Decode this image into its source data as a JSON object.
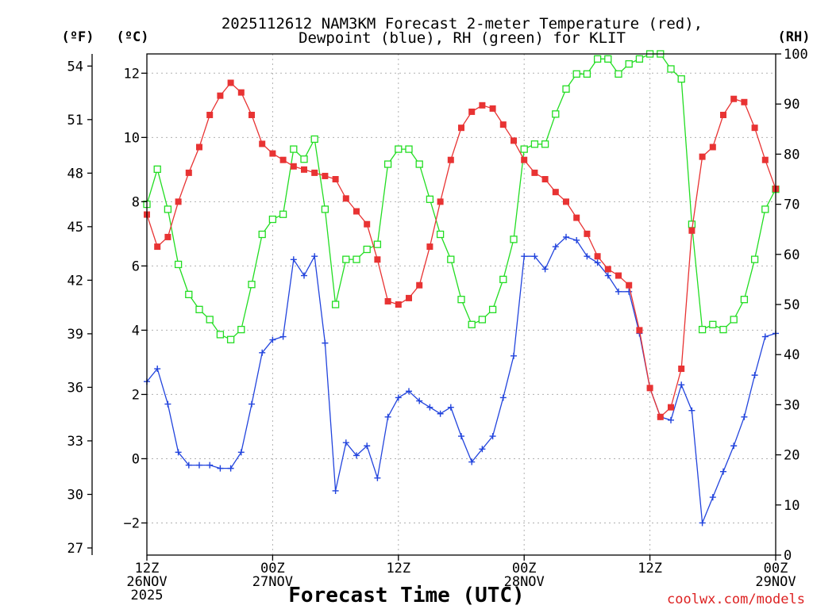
{
  "chart_data": {
    "type": "line",
    "title_line1": "2025112612 NAM3KM Forecast 2-meter Temperature (red),",
    "title_line2": "Dewpoint (blue), RH (green) for KLIT",
    "xlabel": "Forecast Time (UTC)",
    "credit": "coolwx.com/models",
    "unit_f": "(ºF)",
    "unit_c": "(ºC)",
    "unit_rh": "(RH)",
    "x_range_hours": [
      0,
      60
    ],
    "ylim_c": [
      -3,
      12.6
    ],
    "ylim_rh": [
      0,
      100
    ],
    "x_ticks": [
      {
        "hour": 0,
        "lines": [
          "12Z",
          "26NOV",
          "2025"
        ]
      },
      {
        "hour": 12,
        "lines": [
          "00Z",
          "27NOV"
        ]
      },
      {
        "hour": 24,
        "lines": [
          "12Z"
        ]
      },
      {
        "hour": 36,
        "lines": [
          "00Z",
          "28NOV"
        ]
      },
      {
        "hour": 48,
        "lines": [
          "12Z"
        ]
      },
      {
        "hour": 60,
        "lines": [
          "00Z",
          "29NOV"
        ]
      }
    ],
    "yticks_f": [
      27,
      30,
      33,
      36,
      39,
      42,
      45,
      48,
      51,
      54
    ],
    "yticks_c": [
      -2,
      0,
      2,
      4,
      6,
      8,
      10,
      12
    ],
    "yticks_rh": [
      0,
      10,
      20,
      30,
      40,
      50,
      60,
      70,
      80,
      90,
      100
    ],
    "series": [
      {
        "name": "Temperature (red)",
        "axis": "c",
        "color": "#e83333",
        "marker": "filled-square",
        "values": [
          7.6,
          6.6,
          6.9,
          8.0,
          8.9,
          9.7,
          10.7,
          11.3,
          11.7,
          11.4,
          10.7,
          9.8,
          9.5,
          9.3,
          9.1,
          9.0,
          8.9,
          8.8,
          8.7,
          8.1,
          7.7,
          7.3,
          6.2,
          4.9,
          4.8,
          5.0,
          5.4,
          6.6,
          8.0,
          9.3,
          10.3,
          10.8,
          11.0,
          10.9,
          10.4,
          9.9,
          9.3,
          8.9,
          8.7,
          8.3,
          8.0,
          7.5,
          7.0,
          6.3,
          5.9,
          5.7,
          5.4,
          4.0,
          2.2,
          1.3,
          1.6,
          2.8,
          7.1,
          9.4,
          9.7,
          10.7,
          11.2,
          11.1,
          10.3,
          9.3,
          8.4
        ]
      },
      {
        "name": "Dewpoint (blue)",
        "axis": "c",
        "color": "#2244dd",
        "marker": "plus",
        "values": [
          2.4,
          2.8,
          1.7,
          0.2,
          -0.2,
          -0.2,
          -0.2,
          -0.3,
          -0.3,
          0.2,
          1.7,
          3.3,
          3.7,
          3.8,
          6.2,
          5.7,
          6.3,
          3.6,
          -1.0,
          0.5,
          0.1,
          0.4,
          -0.6,
          1.3,
          1.9,
          2.1,
          1.8,
          1.6,
          1.4,
          1.6,
          0.7,
          -0.1,
          0.3,
          0.7,
          1.9,
          3.2,
          6.3,
          6.3,
          5.9,
          6.6,
          6.9,
          6.8,
          6.3,
          6.1,
          5.7,
          5.2,
          5.2,
          3.9,
          2.2,
          1.3,
          1.2,
          2.3,
          1.5,
          -2.0,
          -1.2,
          -0.4,
          0.4,
          1.3,
          2.6,
          3.8,
          3.9
        ]
      },
      {
        "name": "RH (green)",
        "axis": "rh",
        "color": "#22dd22",
        "marker": "open-square",
        "values": [
          70,
          77,
          69,
          58,
          52,
          49,
          47,
          44,
          43,
          45,
          54,
          64,
          67,
          68,
          81,
          79,
          83,
          69,
          50,
          59,
          59,
          61,
          62,
          78,
          81,
          81,
          78,
          71,
          64,
          59,
          51,
          46,
          47,
          49,
          55,
          63,
          81,
          82,
          82,
          88,
          93,
          96,
          96,
          99,
          99,
          96,
          98,
          99,
          100,
          100,
          97,
          95,
          66,
          45,
          46,
          45,
          47,
          51,
          59,
          69,
          73
        ]
      }
    ]
  }
}
